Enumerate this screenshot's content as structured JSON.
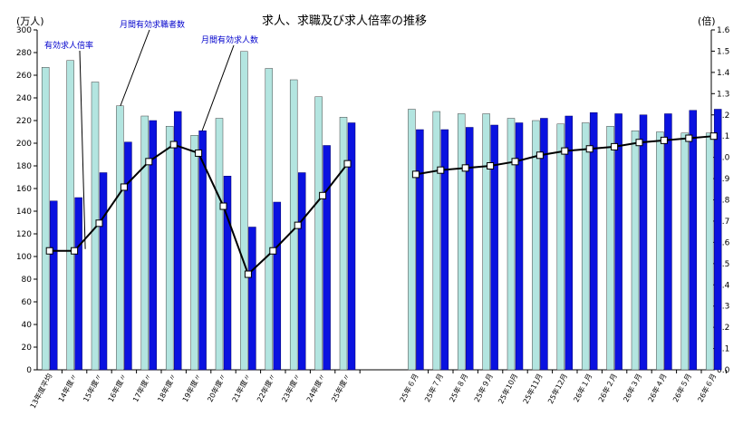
{
  "chart_data": {
    "type": "bar",
    "title": "求人、求職及び求人倍率の推移",
    "ylabel_left": "(万人)",
    "ylabel_right": "(倍)",
    "ylim_left": [
      0,
      300
    ],
    "ylim_right": [
      0.0,
      1.6
    ],
    "left_ticks": [
      "0",
      "20",
      "40",
      "60",
      "80",
      "100",
      "120",
      "140",
      "160",
      "180",
      "200",
      "220",
      "240",
      "260",
      "280",
      "300"
    ],
    "right_ticks": [
      "0.0",
      "0.1",
      "0.2",
      "0.3",
      "0.4",
      "0.5",
      "0.6",
      "0.7",
      "0.8",
      "0.9",
      "1.0",
      "1.1",
      "1.2",
      "1.3",
      "1.4",
      "1.5",
      "1.6"
    ],
    "categories": [
      "13年度平均",
      "14年度〃",
      "15年度〃",
      "16年度〃",
      "17年度〃",
      "18年度〃",
      "19年度〃",
      "20年度〃",
      "21年度〃",
      "22年度〃",
      "23年度〃",
      "24年度〃",
      "25年度〃",
      "25年６月",
      "25年７月",
      "25年８月",
      "25年９月",
      "25年10月",
      "25年11月",
      "25年12月",
      "26年１月",
      "26年２月",
      "26年３月",
      "26年４月",
      "26年５月",
      "26年６月"
    ],
    "series": [
      {
        "name": "月間有効求職者数",
        "axis": "left",
        "color": "#b3e5e0",
        "values": [
          267,
          273,
          254,
          233,
          224,
          215,
          207,
          222,
          281,
          266,
          256,
          241,
          223,
          230,
          228,
          226,
          226,
          222,
          220,
          217,
          218,
          215,
          211,
          210,
          209,
          209
        ]
      },
      {
        "name": "月間有効求人数",
        "axis": "left",
        "color": "#0a12e0",
        "values": [
          149,
          152,
          174,
          201,
          220,
          228,
          211,
          171,
          126,
          148,
          174,
          198,
          218,
          212,
          212,
          214,
          216,
          218,
          222,
          224,
          227,
          226,
          225,
          226,
          229,
          230
        ]
      },
      {
        "name": "有効求人倍率",
        "axis": "right",
        "type": "line",
        "color": "#000000",
        "values": [
          0.56,
          0.56,
          0.69,
          0.86,
          0.98,
          1.06,
          1.02,
          0.77,
          0.45,
          0.56,
          0.68,
          0.82,
          0.97,
          0.92,
          0.94,
          0.95,
          0.96,
          0.98,
          1.01,
          1.03,
          1.04,
          1.05,
          1.07,
          1.08,
          1.09,
          1.1
        ]
      }
    ],
    "annotations": [
      {
        "text": "有効求人倍率",
        "target_series": 2,
        "target_index": 1
      },
      {
        "text": "月間有効求職者数",
        "target_series": 0,
        "target_index": 3
      },
      {
        "text": "月間有効求人数",
        "target_series": 1,
        "target_index": 6
      }
    ],
    "grid": false,
    "legend": "none"
  }
}
